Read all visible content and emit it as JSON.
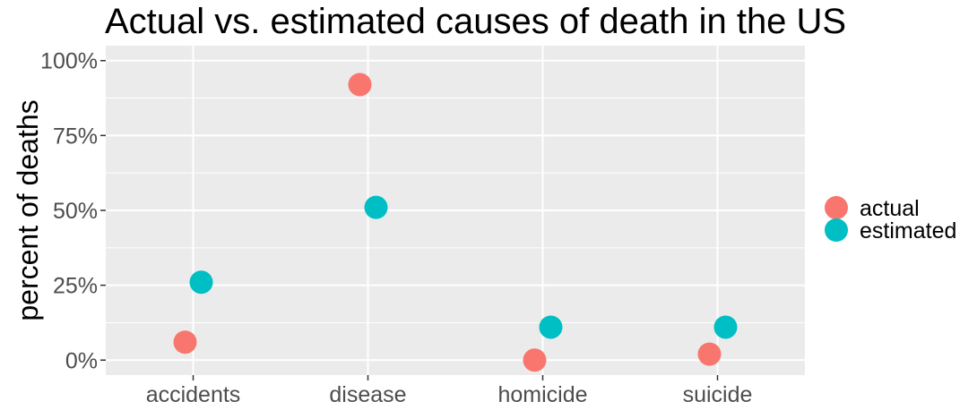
{
  "chart_data": {
    "type": "scatter",
    "title": "Actual vs. estimated causes of death in the US",
    "xlabel": "",
    "ylabel": "percent of deaths",
    "categories": [
      "accidents",
      "disease",
      "homicide",
      "suicide"
    ],
    "y_ticks": [
      "0%",
      "25%",
      "50%",
      "75%",
      "100%"
    ],
    "y_tick_values": [
      0,
      25,
      50,
      75,
      100
    ],
    "ylim": [
      -5,
      105
    ],
    "grid": true,
    "legend_position": "right",
    "series": [
      {
        "name": "actual",
        "color": "#F8766D",
        "values": [
          6,
          92,
          0,
          2
        ]
      },
      {
        "name": "estimated",
        "color": "#00BFC4",
        "values": [
          26,
          51,
          11,
          11
        ]
      }
    ],
    "panel_background": "#EBEBEB",
    "grid_color": "#FFFFFF"
  }
}
